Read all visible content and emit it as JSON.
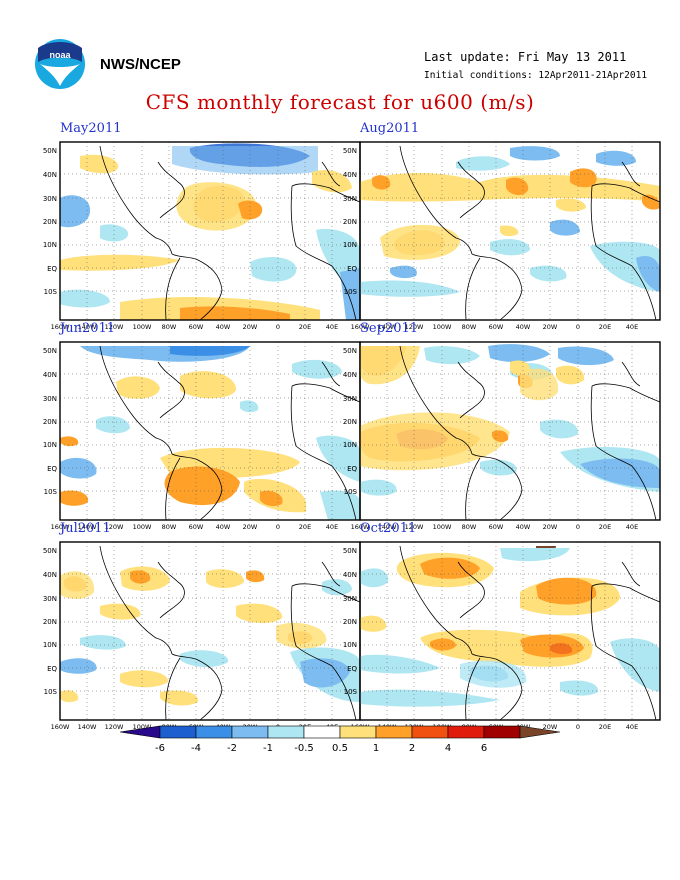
{
  "header": {
    "org": "NWS/NCEP",
    "last_update": "Last update: Fri May 13 2011",
    "initial_conditions": "Initial conditions: 12Apr2011-21Apr2011",
    "title": "CFS monthly forecast for u600 (m/s)"
  },
  "logo": {
    "icon": "noaa-logo-icon",
    "text": "noaa"
  },
  "axes": {
    "lat_labels": [
      "50N",
      "40N",
      "30N",
      "20N",
      "10N",
      "EQ",
      "10S"
    ],
    "lon_labels": [
      "160W",
      "140W",
      "120W",
      "100W",
      "80W",
      "60W",
      "40W",
      "20W",
      "0",
      "20E",
      "40E"
    ]
  },
  "panels": [
    {
      "id": "may",
      "title": "May2011"
    },
    {
      "id": "aug",
      "title": "Aug2011"
    },
    {
      "id": "jun",
      "title": "Jun2011"
    },
    {
      "id": "sep",
      "title": "Sep2011"
    },
    {
      "id": "jul",
      "title": "Jul2011"
    },
    {
      "id": "oct",
      "title": "Oct2011"
    }
  ],
  "colorbar": {
    "labels": [
      "-6",
      "-4",
      "-2",
      "-1",
      "-0.5",
      "0.5",
      "1",
      "2",
      "4",
      "6"
    ],
    "colors": {
      "lt_m6": "#2a0a8c",
      "m6_m4": "#1e5fd0",
      "m4_m2": "#3c8fe6",
      "m2_m1": "#7cbcf0",
      "m1_m05": "#aee6f2",
      "m05_05": "#ffffff",
      "05_1": "#ffe07a",
      "1_2": "#ffa028",
      "2_4": "#f05010",
      "4_6": "#e01c0c",
      "6_plus": "#a00000",
      "gt_6": "#7a4428"
    }
  }
}
